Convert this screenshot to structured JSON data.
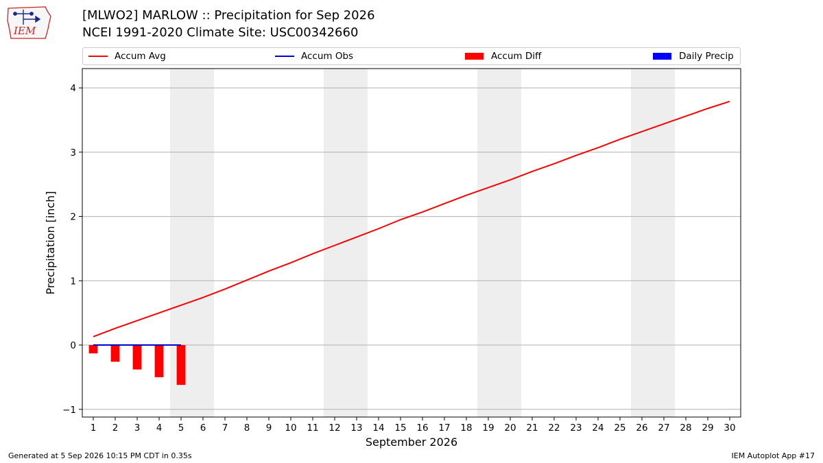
{
  "header": {
    "title_line1": "[MLWO2] MARLOW :: Precipitation for Sep 2026",
    "title_line2": "NCEI 1991-2020 Climate Site: USC00342660",
    "logo_text": "IEM"
  },
  "legend": [
    {
      "label": "Accum Avg",
      "color": "#ff0000",
      "kind": "line"
    },
    {
      "label": "Accum Obs",
      "color": "#0000cc",
      "kind": "line"
    },
    {
      "label": "Accum Diff",
      "color": "#ff0000",
      "kind": "box"
    },
    {
      "label": "Daily Precip",
      "color": "#0000ff",
      "kind": "box"
    }
  ],
  "chart_data": {
    "type": "line",
    "xlabel": "September 2026",
    "ylabel": "Precipitation [inch]",
    "ylim": [
      -1.12,
      4.3
    ],
    "xlim": [
      0.5,
      30.5
    ],
    "x_ticks": [
      1,
      2,
      3,
      4,
      5,
      6,
      7,
      8,
      9,
      10,
      11,
      12,
      13,
      14,
      15,
      16,
      17,
      18,
      19,
      20,
      21,
      22,
      23,
      24,
      25,
      26,
      27,
      28,
      29,
      30
    ],
    "y_ticks": [
      -1,
      0,
      1,
      2,
      3,
      4
    ],
    "grid": "horizontal",
    "weekend_shading": [
      [
        4.5,
        6.5
      ],
      [
        11.5,
        13.5
      ],
      [
        18.5,
        20.5
      ],
      [
        25.5,
        27.5
      ]
    ],
    "shade_color": "#eeeeee",
    "series": [
      {
        "name": "Accum Avg",
        "kind": "line",
        "color": "#ff0000",
        "x": [
          1,
          2,
          3,
          4,
          5,
          6,
          7,
          8,
          9,
          10,
          11,
          12,
          13,
          14,
          15,
          16,
          17,
          18,
          19,
          20,
          21,
          22,
          23,
          24,
          25,
          26,
          27,
          28,
          29,
          30
        ],
        "values": [
          0.13,
          0.26,
          0.38,
          0.5,
          0.62,
          0.74,
          0.87,
          1.01,
          1.15,
          1.28,
          1.42,
          1.55,
          1.68,
          1.81,
          1.95,
          2.07,
          2.2,
          2.33,
          2.45,
          2.57,
          2.7,
          2.82,
          2.95,
          3.07,
          3.2,
          3.32,
          3.44,
          3.56,
          3.68,
          3.79
        ]
      },
      {
        "name": "Accum Obs",
        "kind": "line",
        "color": "#0000cc",
        "x": [
          1,
          2,
          3,
          4,
          5
        ],
        "values": [
          0,
          0,
          0,
          0,
          0
        ]
      },
      {
        "name": "Accum Diff",
        "kind": "bar",
        "color": "#ff0000",
        "x": [
          1,
          2,
          3,
          4,
          5
        ],
        "values": [
          -0.13,
          -0.26,
          -0.38,
          -0.5,
          -0.62
        ]
      },
      {
        "name": "Daily Precip",
        "kind": "bar",
        "color": "#0000ff",
        "x": [
          1,
          2,
          3,
          4,
          5
        ],
        "values": [
          0,
          0,
          0,
          0,
          0
        ]
      }
    ]
  },
  "footer": {
    "left": "Generated at 5 Sep 2026 10:15 PM CDT in 0.35s",
    "right": "IEM Autoplot App #17"
  }
}
